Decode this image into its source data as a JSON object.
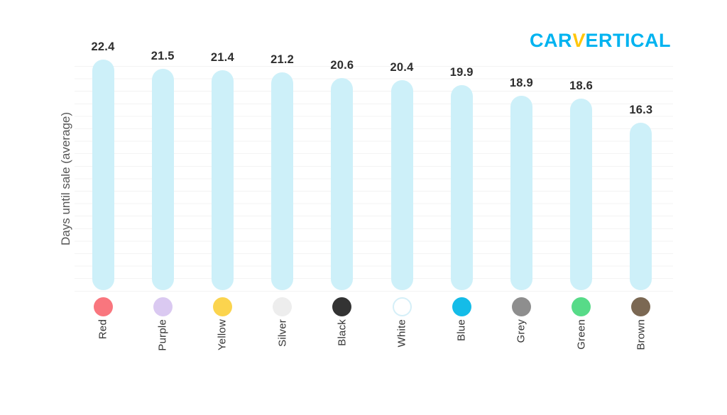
{
  "logo": {
    "part1": "CAR",
    "accent": "V",
    "part2": "ERTICAL"
  },
  "chart_data": {
    "type": "bar",
    "title": "",
    "ylabel": "Days until sale (average)",
    "xlabel": "",
    "categories": [
      "Red",
      "Purple",
      "Yellow",
      "Silver",
      "Black",
      "White",
      "Blue",
      "Grey",
      "Green",
      "Brown"
    ],
    "values": [
      22.4,
      21.5,
      21.4,
      21.2,
      20.6,
      20.4,
      19.9,
      18.9,
      18.6,
      16.3
    ],
    "value_labels": [
      "22.4",
      "21.5",
      "21.4",
      "21.2",
      "20.6",
      "20.4",
      "19.9",
      "18.9",
      "18.6",
      "16.3"
    ],
    "swatch_colors": [
      "#f9767e",
      "#dac9f1",
      "#fbd44e",
      "#ededed",
      "#333333",
      "#ffffff",
      "#14bce8",
      "#8e8e8e",
      "#57db88",
      "#7b6853"
    ],
    "swatch_border_colors": [
      "transparent",
      "transparent",
      "transparent",
      "transparent",
      "transparent",
      "#d5eff8",
      "transparent",
      "transparent",
      "transparent",
      "transparent"
    ],
    "bar_color": "#cdf0f9",
    "grid": true,
    "legend_position": "none",
    "ylim": [
      0,
      22.4
    ]
  }
}
